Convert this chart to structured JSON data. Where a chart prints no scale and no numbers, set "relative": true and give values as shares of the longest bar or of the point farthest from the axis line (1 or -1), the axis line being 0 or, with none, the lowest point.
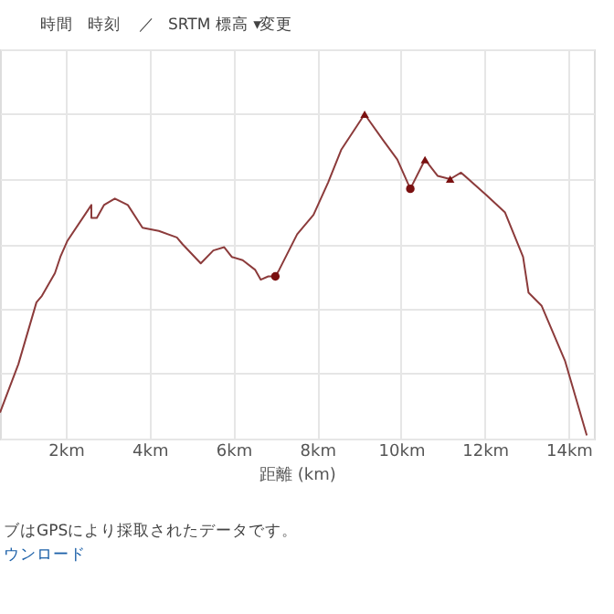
{
  "chart_data": {
    "type": "line",
    "relative": true,
    "xlabel": "距離 (km)",
    "xlim": [
      0.43,
      14.6
    ],
    "xticks": [
      {
        "value": 2,
        "label": "2km"
      },
      {
        "value": 4,
        "label": "4km"
      },
      {
        "value": 6,
        "label": "6km"
      },
      {
        "value": 8,
        "label": "8km"
      },
      {
        "value": 10,
        "label": "10km"
      },
      {
        "value": 12,
        "label": "12km"
      },
      {
        "value": 14,
        "label": "14km"
      }
    ],
    "grid": true,
    "series": [
      {
        "color": "#8c3b3b",
        "marker": "none",
        "line_style": "solid",
        "x": [
          0.43,
          0.87,
          1.3,
          1.43,
          1.74,
          1.87,
          2.04,
          2.61,
          2.61,
          2.74,
          2.91,
          3.17,
          3.48,
          3.83,
          4.22,
          4.65,
          4.78,
          5.22,
          5.52,
          5.78,
          5.96,
          6.22,
          6.52,
          6.65,
          6.83,
          7.0,
          7.09,
          7.52,
          7.91,
          8.26,
          8.57,
          9.13,
          9.57,
          9.91,
          10.22,
          10.57,
          10.87,
          11.17,
          11.43,
          12.04,
          12.48,
          12.91,
          13.04,
          13.35,
          13.91,
          14.43
        ],
        "values": [
          0.08,
          0.23,
          0.42,
          0.44,
          0.51,
          0.56,
          0.61,
          0.72,
          0.68,
          0.68,
          0.72,
          0.74,
          0.72,
          0.65,
          0.64,
          0.62,
          0.6,
          0.54,
          0.58,
          0.59,
          0.56,
          0.55,
          0.52,
          0.49,
          0.5,
          0.5,
          0.52,
          0.63,
          0.69,
          0.79,
          0.89,
          1.0,
          0.92,
          0.86,
          0.77,
          0.86,
          0.81,
          0.8,
          0.82,
          0.75,
          0.697,
          0.56,
          0.45,
          0.41,
          0.24,
          0.01
        ]
      },
      {
        "type": "scatter",
        "marker": "triangle",
        "color": "#7a1010",
        "x": [
          9.13,
          10.57,
          11.17
        ],
        "values": [
          1.0,
          0.86,
          0.8
        ]
      },
      {
        "type": "scatter",
        "marker": "circle",
        "color": "#7a1010",
        "x": [
          7.0,
          10.22
        ],
        "values": [
          0.5,
          0.77
        ]
      }
    ],
    "annotations": [
      "時間",
      "時刻",
      "／",
      "SRTM 標高 ▾",
      "変更",
      "ブはGPSにより採取されたデータです。",
      "ウンロード"
    ]
  }
}
